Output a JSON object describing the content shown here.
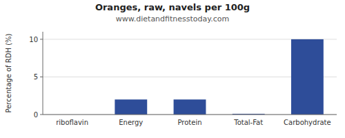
{
  "chart_data": {
    "type": "bar",
    "title": "Oranges, raw, navels per 100g",
    "subtitle": "www.dietandfitnesstoday.com",
    "categories": [
      "riboflavin",
      "Energy",
      "Protein",
      "Total-Fat",
      "Carbohydrate"
    ],
    "values": [
      0.0,
      2.0,
      2.0,
      0.1,
      10.0
    ],
    "color": "#2e4d99",
    "ylabel": "Percentage of RDH (%)",
    "ylim": [
      0,
      11
    ],
    "yticks": [
      0,
      5,
      10
    ],
    "grid": true
  }
}
